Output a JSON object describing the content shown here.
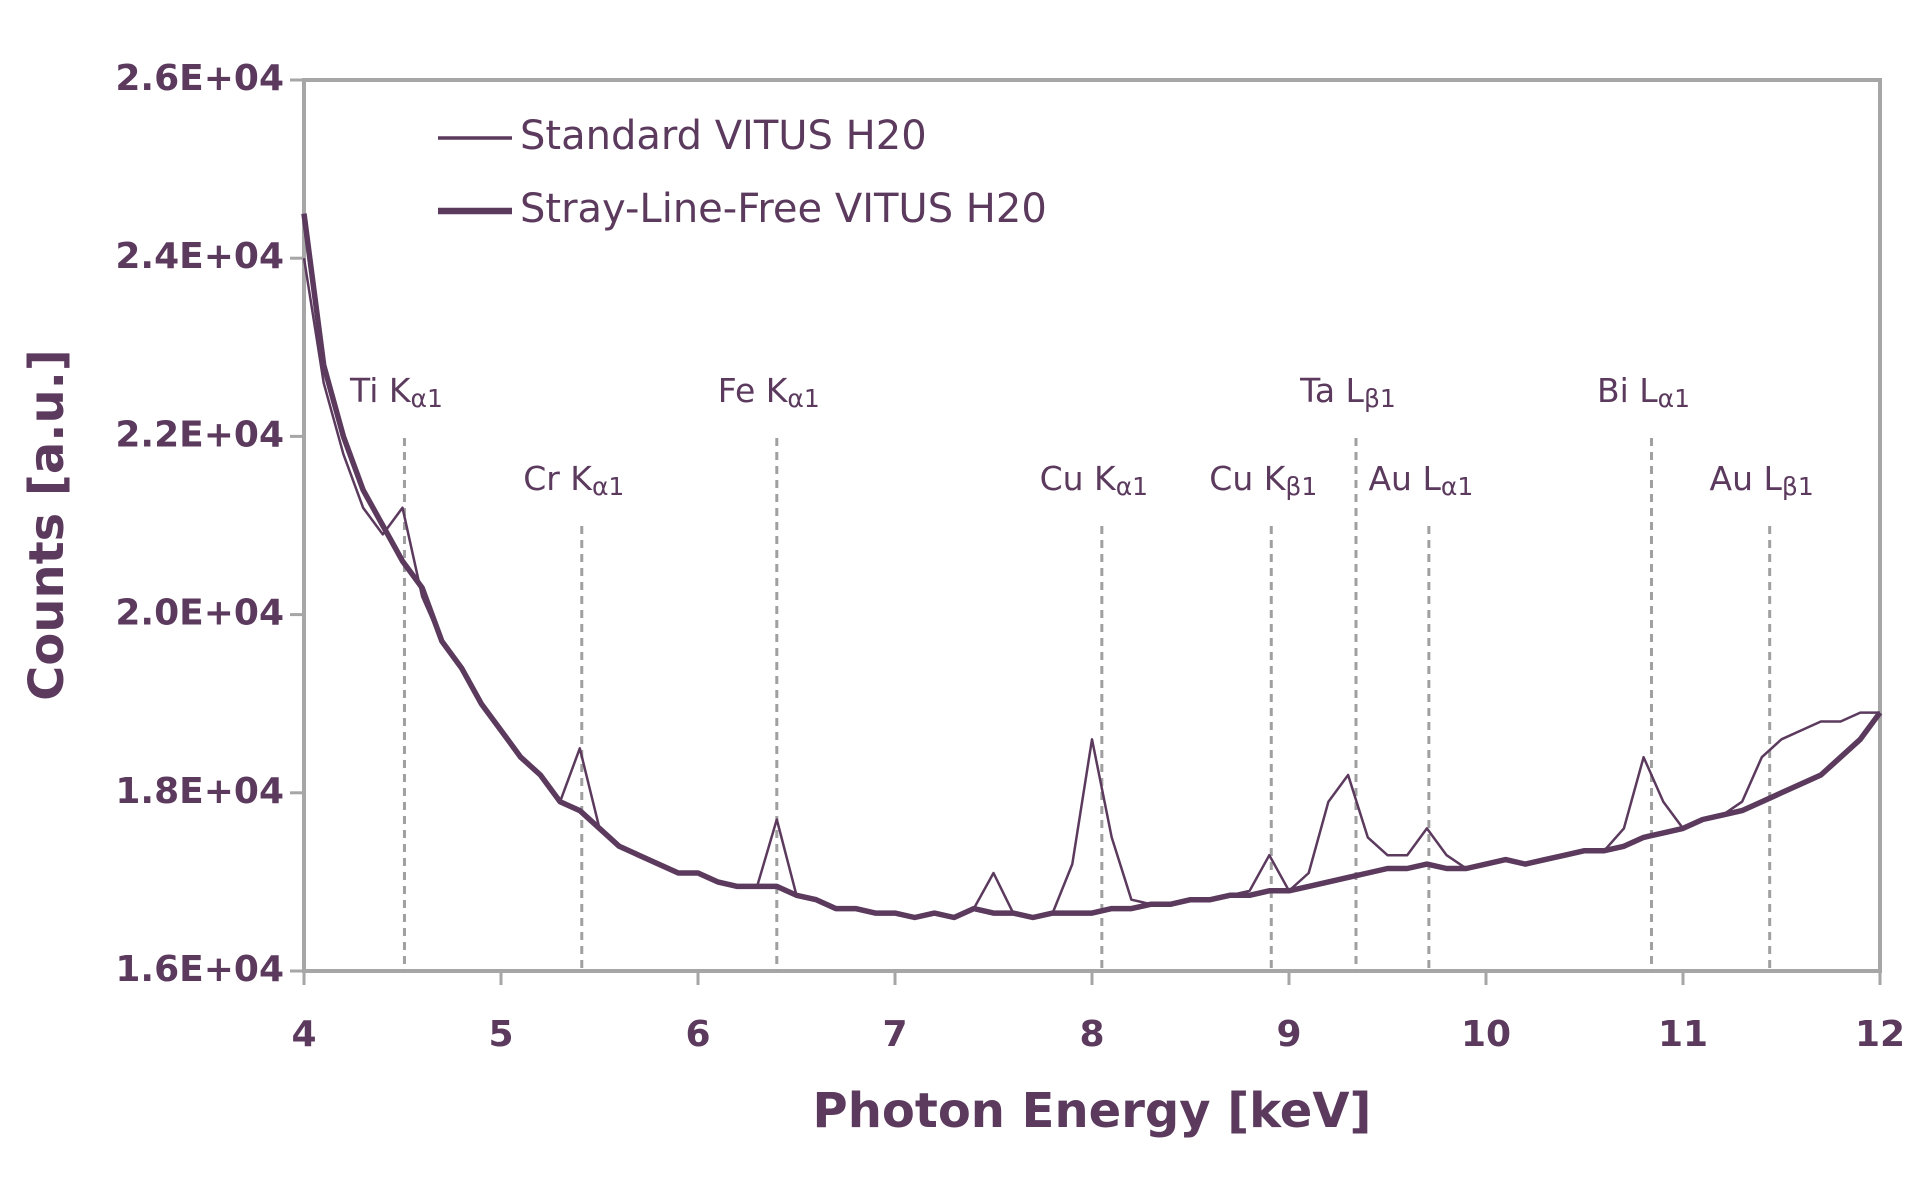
{
  "chart_data": {
    "type": "line",
    "xlabel": "Photon Energy [keV]",
    "ylabel": "Counts [a.u.]",
    "x": [
      4.0,
      4.1,
      4.2,
      4.3,
      4.4,
      4.5,
      4.6,
      4.7,
      4.8,
      4.9,
      5.0,
      5.1,
      5.2,
      5.3,
      5.4,
      5.5,
      5.6,
      5.7,
      5.8,
      5.9,
      6.0,
      6.1,
      6.2,
      6.3,
      6.4,
      6.5,
      6.6,
      6.7,
      6.8,
      6.9,
      7.0,
      7.1,
      7.2,
      7.3,
      7.4,
      7.5,
      7.6,
      7.7,
      7.8,
      7.9,
      8.0,
      8.1,
      8.2,
      8.3,
      8.4,
      8.5,
      8.6,
      8.7,
      8.8,
      8.9,
      9.0,
      9.1,
      9.2,
      9.3,
      9.4,
      9.5,
      9.6,
      9.7,
      9.8,
      9.9,
      10.0,
      10.1,
      10.2,
      10.3,
      10.4,
      10.5,
      10.6,
      10.7,
      10.8,
      10.9,
      11.0,
      11.1,
      11.2,
      11.3,
      11.4,
      11.5,
      11.6,
      11.7,
      11.8,
      11.9,
      12.0
    ],
    "series": [
      {
        "name": "Standard VITUS H20",
        "color": "#5b3a5e",
        "values": [
          24000,
          22600,
          21800,
          21200,
          20900,
          21200,
          20200,
          19700,
          19400,
          19000,
          18700,
          18400,
          18200,
          17900,
          18500,
          17600,
          17400,
          17300,
          17200,
          17100,
          17100,
          17000,
          16950,
          16950,
          17700,
          16850,
          16800,
          16700,
          16700,
          16650,
          16650,
          16600,
          16650,
          16600,
          16700,
          17100,
          16650,
          16600,
          16650,
          17200,
          18600,
          17500,
          16800,
          16750,
          16750,
          16800,
          16800,
          16850,
          16900,
          17300,
          16900,
          17100,
          17900,
          18200,
          17500,
          17300,
          17300,
          17600,
          17300,
          17150,
          17200,
          17250,
          17200,
          17250,
          17300,
          17350,
          17350,
          17600,
          18400,
          17900,
          17600,
          17700,
          17750,
          17900,
          18400,
          18600,
          18700,
          18800,
          18800,
          18900,
          18900
        ]
      },
      {
        "name": "Stray-Line-Free VITUS H20",
        "color": "#5b3a5e",
        "values": [
          24500,
          22800,
          22000,
          21400,
          21000,
          20600,
          20300,
          19700,
          19400,
          19000,
          18700,
          18400,
          18200,
          17900,
          17800,
          17600,
          17400,
          17300,
          17200,
          17100,
          17100,
          17000,
          16950,
          16950,
          16950,
          16850,
          16800,
          16700,
          16700,
          16650,
          16650,
          16600,
          16650,
          16600,
          16700,
          16650,
          16650,
          16600,
          16650,
          16650,
          16650,
          16700,
          16700,
          16750,
          16750,
          16800,
          16800,
          16850,
          16850,
          16900,
          16900,
          16950,
          17000,
          17050,
          17100,
          17150,
          17150,
          17200,
          17150,
          17150,
          17200,
          17250,
          17200,
          17250,
          17300,
          17350,
          17350,
          17400,
          17500,
          17550,
          17600,
          17700,
          17750,
          17800,
          17900,
          18000,
          18100,
          18200,
          18400,
          18600,
          18900
        ]
      }
    ],
    "xlim": [
      4,
      12
    ],
    "xticks": [
      4,
      5,
      6,
      7,
      8,
      9,
      10,
      11,
      12
    ],
    "ylim": [
      16000,
      26000
    ],
    "yticks": [
      {
        "value": 16000,
        "label": "1.6E+04"
      },
      {
        "value": 18000,
        "label": "1.8E+04"
      },
      {
        "value": 20000,
        "label": "2.0E+04"
      },
      {
        "value": 22000,
        "label": "2.2E+04"
      },
      {
        "value": 24000,
        "label": "2.4E+04"
      },
      {
        "value": 26000,
        "label": "2.6E+04"
      }
    ],
    "legend": "upper left",
    "annotations": [
      {
        "text": "Ti K",
        "subscript": "α1",
        "x": 4.51
      },
      {
        "text": "Cr K",
        "subscript": "α1",
        "x": 5.41
      },
      {
        "text": "Fe K",
        "subscript": "α1",
        "x": 6.4
      },
      {
        "text": "Cu K",
        "subscript": "α1",
        "x": 8.05
      },
      {
        "text": "Cu K",
        "subscript": "β1",
        "x": 8.91
      },
      {
        "text": "Ta L",
        "subscript": "β1",
        "x": 9.34
      },
      {
        "text": "Au L",
        "subscript": "α1",
        "x": 9.71
      },
      {
        "text": "Bi L",
        "subscript": "α1",
        "x": 10.84
      },
      {
        "text": "Au L",
        "subscript": "β1",
        "x": 11.44
      }
    ]
  }
}
